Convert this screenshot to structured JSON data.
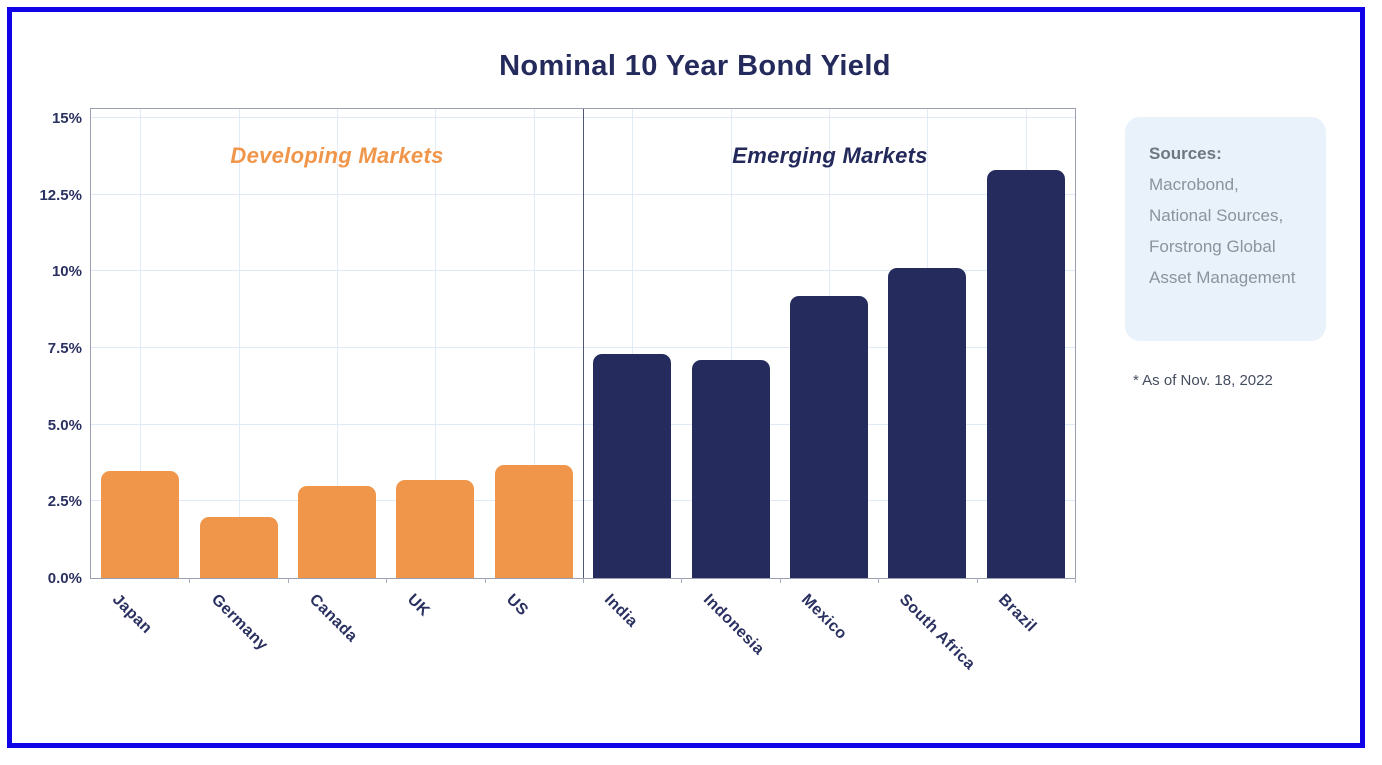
{
  "title": "Nominal 10 Year Bond Yield",
  "frame": {
    "border_color": "#1103E8"
  },
  "sections": {
    "developing": {
      "label": "Developing Markets",
      "color": "#F0964A"
    },
    "emerging": {
      "label": "Emerging Markets",
      "color": "#232A5B"
    }
  },
  "sources_panel": {
    "heading": "Sources:",
    "body": "Macrobond, National Sources, Forstrong Global Asset Management",
    "background": "#E9F2FB"
  },
  "footnote": "* As of Nov. 18, 2022",
  "chart_data": {
    "type": "bar",
    "title": "Nominal 10 Year Bond Yield",
    "categories": [
      "Japan",
      "Germany",
      "Canada",
      "UK",
      "US",
      "India",
      "Indonesia",
      "Mexico",
      "South Africa",
      "Brazil"
    ],
    "values": [
      3.5,
      2.0,
      3.0,
      3.2,
      3.7,
      7.3,
      7.1,
      9.2,
      10.1,
      13.3
    ],
    "groups": [
      {
        "label": "Developing Markets",
        "color": "#F0964A",
        "start_index": 0,
        "end_index": 4
      },
      {
        "label": "Emerging Markets",
        "color": "#252C5D",
        "start_index": 5,
        "end_index": 9
      }
    ],
    "xlabel": "",
    "ylabel": "",
    "ylim": [
      0,
      15
    ],
    "yticks": [
      {
        "value": 15,
        "label": "15%"
      },
      {
        "value": 12.5,
        "label": "12.5%"
      },
      {
        "value": 10,
        "label": "10%"
      },
      {
        "value": 7.5,
        "label": "7.5%"
      },
      {
        "value": 5,
        "label": "5.0%"
      },
      {
        "value": 2.5,
        "label": "2.5%"
      },
      {
        "value": 0,
        "label": "0.0%"
      }
    ],
    "grid": true,
    "legend_position": "none",
    "section_divider_after_category": "US",
    "colors": {
      "developing_bar": "#F0964A",
      "emerging_bar": "#252C5D",
      "gridline": "#DFEAF6",
      "axis_border": "#9AA0AF",
      "divider": "#525870",
      "tick_text": "#2A3160"
    }
  }
}
